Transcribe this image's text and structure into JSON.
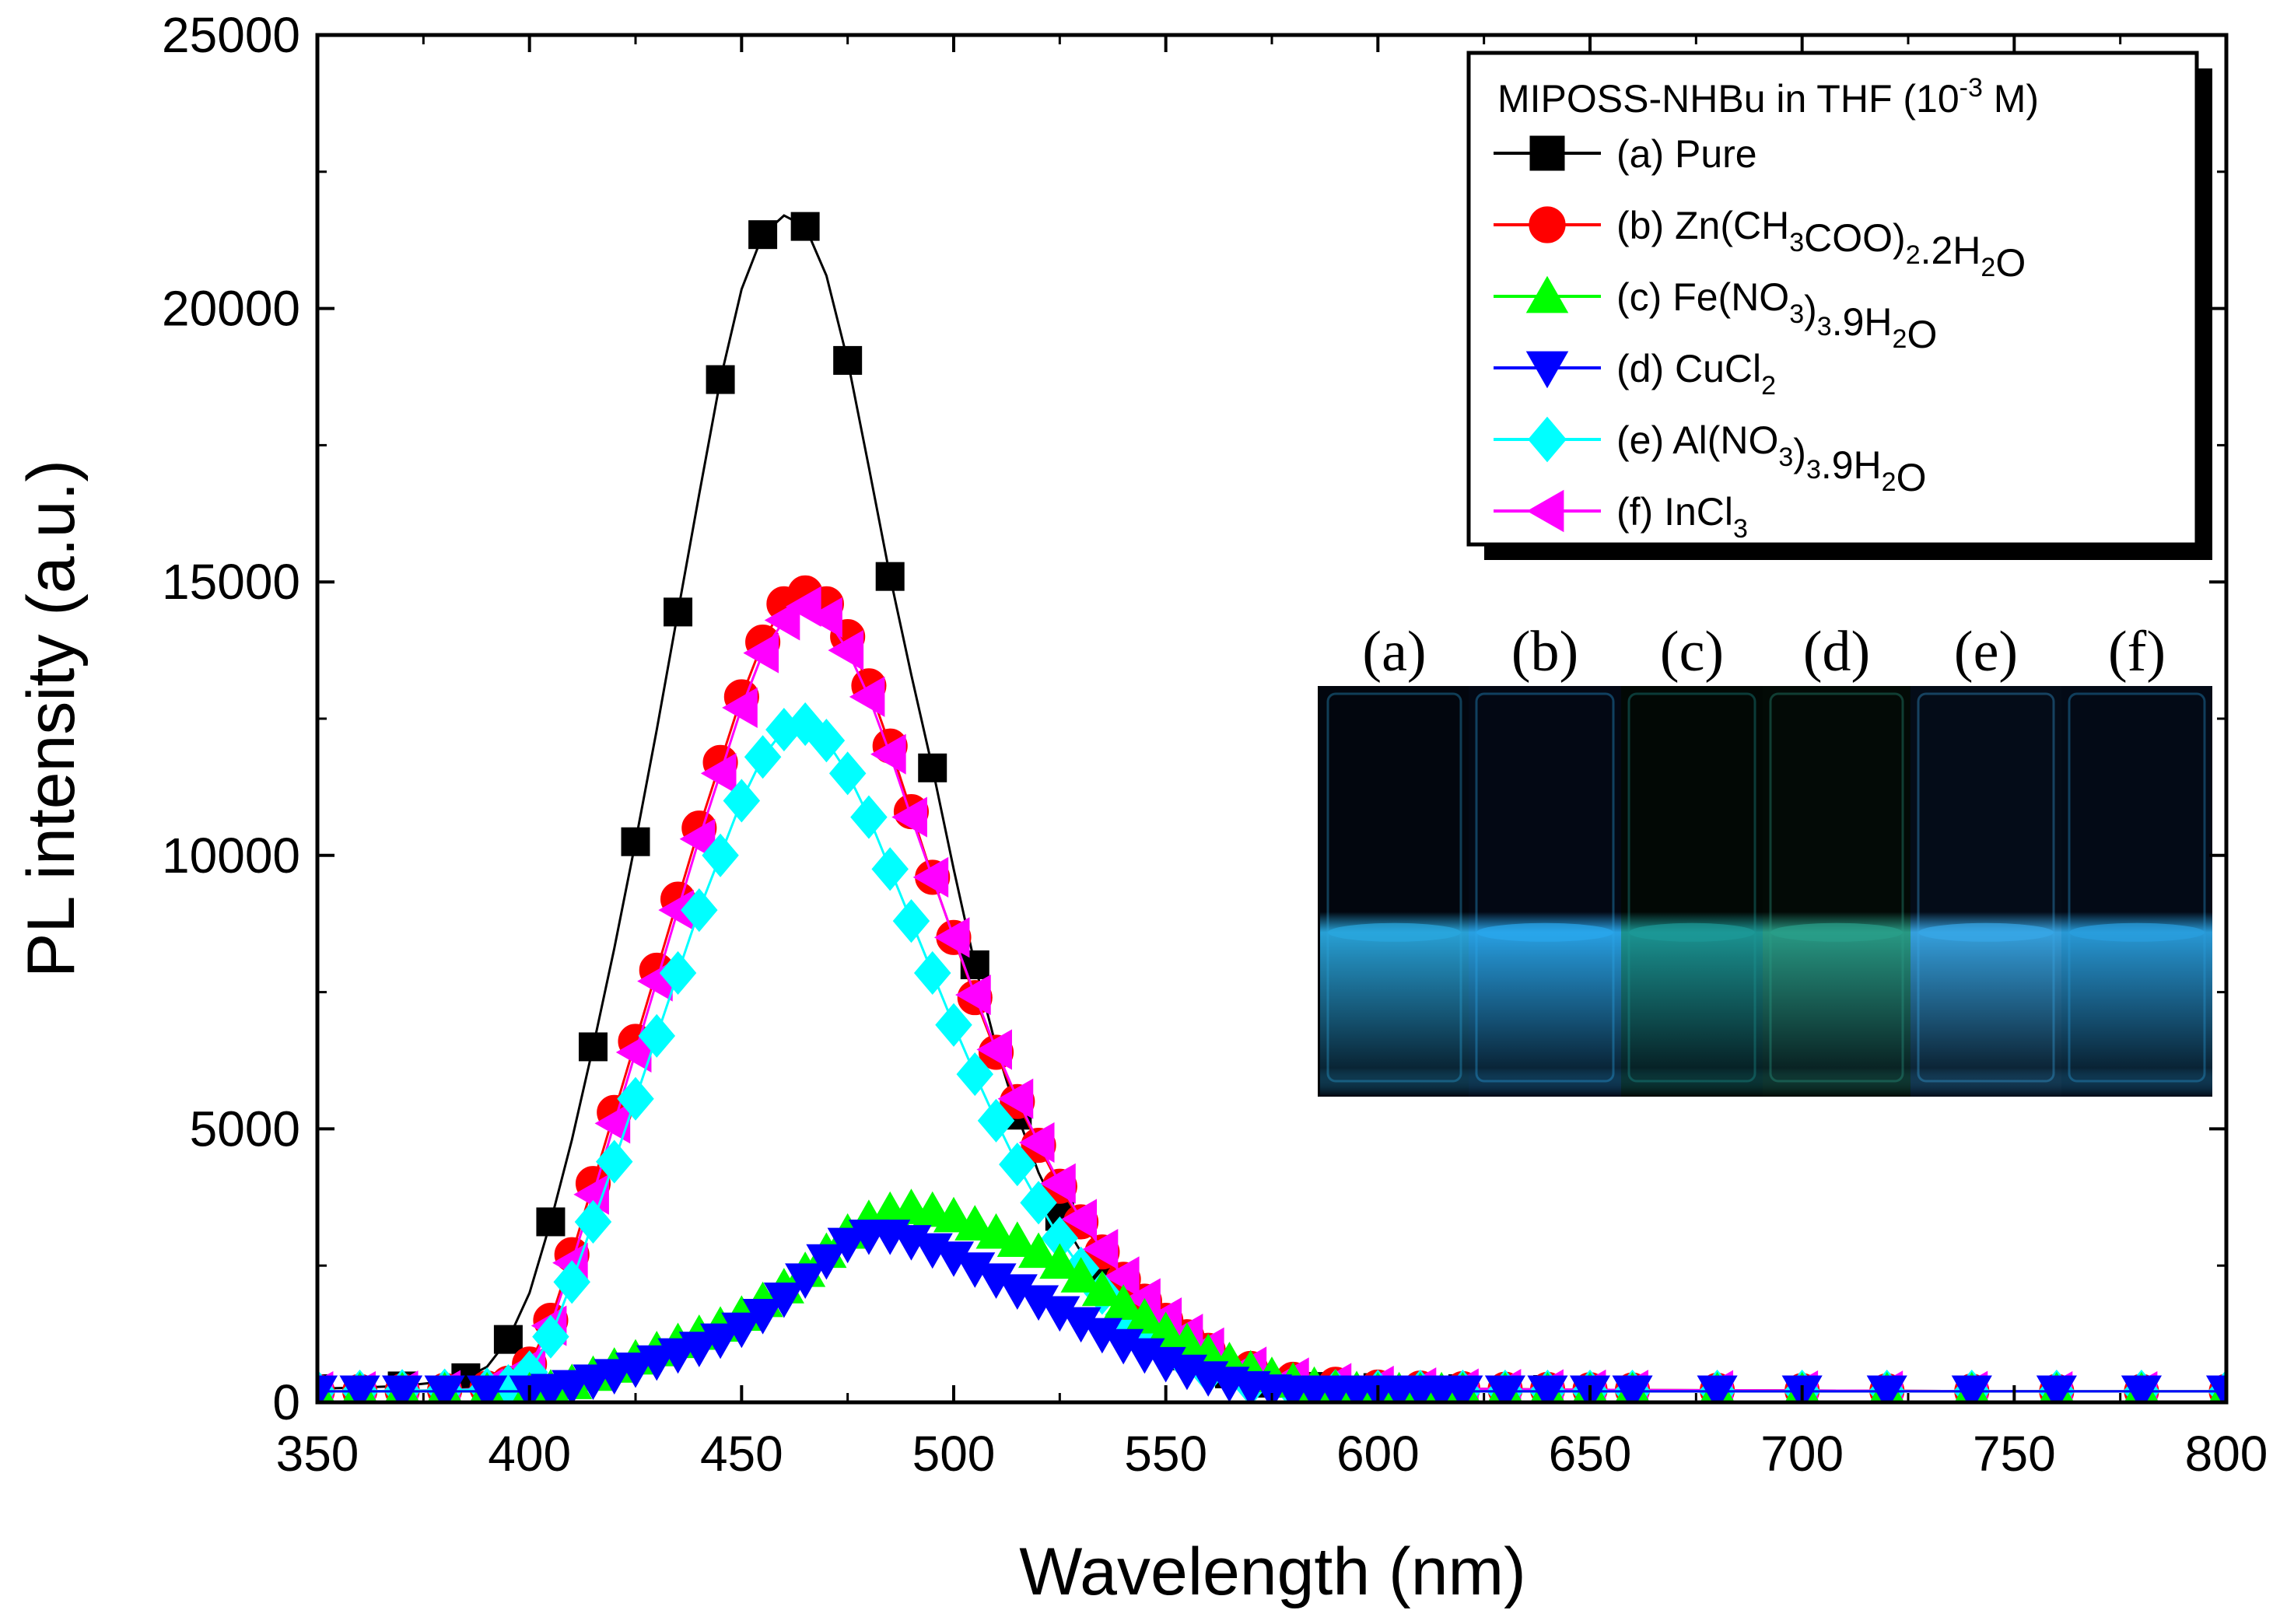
{
  "chart_data": {
    "type": "scatter",
    "xlabel": "Wavelength (nm)",
    "ylabel": "PL intensity (a.u.)",
    "xlim": [
      350,
      800
    ],
    "ylim": [
      0,
      25000
    ],
    "xticks": [
      350,
      400,
      450,
      500,
      550,
      600,
      650,
      700,
      750,
      800
    ],
    "yticks": [
      0,
      5000,
      10000,
      15000,
      20000,
      25000
    ],
    "legend": {
      "title_main": "MIPOSS-NHBu in THF (10",
      "title_sup": "-3",
      "title_end": " M)",
      "position": "top-right"
    },
    "series": [
      {
        "key": "a",
        "symbol": "square",
        "color": "#000000",
        "markerEvery": 2,
        "label_parts": [
          [
            "(a) Pure",
            ""
          ]
        ],
        "x": [
          350,
          360,
          370,
          380,
          385,
          390,
          395,
          400,
          405,
          410,
          415,
          420,
          425,
          430,
          435,
          440,
          445,
          450,
          455,
          460,
          465,
          470,
          475,
          480,
          485,
          490,
          495,
          500,
          505,
          510,
          515,
          520,
          525,
          530,
          535,
          540,
          545,
          550,
          555,
          560,
          565,
          570,
          575,
          580,
          585,
          590,
          600,
          610,
          620,
          630,
          640,
          650,
          660,
          680,
          700,
          720,
          740,
          760,
          780,
          800
        ],
        "y": [
          250,
          270,
          300,
          380,
          450,
          650,
          1150,
          2000,
          3300,
          4800,
          6500,
          8300,
          10250,
          12300,
          14450,
          16600,
          18700,
          20350,
          21350,
          21700,
          21500,
          20600,
          19050,
          17100,
          15100,
          13300,
          11600,
          9750,
          8000,
          6500,
          5250,
          4200,
          3400,
          2750,
          2200,
          1850,
          1400,
          1100,
          850,
          650,
          520,
          420,
          350,
          310,
          290,
          280,
          270,
          260,
          250,
          240,
          235,
          230,
          225,
          220,
          215,
          210,
          205,
          200,
          200,
          200
        ]
      },
      {
        "key": "b",
        "symbol": "circle",
        "color": "#ff0000",
        "markerEvery": 1,
        "label_parts": [
          [
            "(b) Zn(CH",
            ""
          ],
          [
            "3",
            "sub"
          ],
          [
            "COO)",
            ""
          ],
          [
            "2",
            "sub"
          ],
          [
            ".2H",
            ""
          ],
          [
            "2",
            "sub"
          ],
          [
            "O",
            ""
          ]
        ],
        "x": [
          350,
          360,
          370,
          380,
          390,
          395,
          400,
          405,
          410,
          415,
          420,
          425,
          430,
          435,
          440,
          445,
          450,
          455,
          460,
          465,
          470,
          475,
          480,
          485,
          490,
          495,
          500,
          505,
          510,
          515,
          520,
          525,
          530,
          535,
          540,
          545,
          550,
          555,
          560,
          570,
          580,
          590,
          600,
          610,
          620,
          630,
          640,
          650,
          660,
          680,
          700,
          720,
          740,
          760,
          780,
          800
        ],
        "y": [
          200,
          200,
          210,
          220,
          260,
          350,
          700,
          1500,
          2700,
          4000,
          5300,
          6600,
          7900,
          9200,
          10500,
          11700,
          12900,
          13900,
          14600,
          14800,
          14600,
          14000,
          13100,
          12000,
          10800,
          9600,
          8500,
          7400,
          6400,
          5500,
          4700,
          3950,
          3300,
          2750,
          2250,
          1850,
          1500,
          1200,
          950,
          620,
          420,
          330,
          280,
          260,
          250,
          240,
          235,
          230,
          225,
          220,
          215,
          210,
          205,
          200,
          200,
          200
        ]
      },
      {
        "key": "f",
        "symbol": "triangle-left",
        "color": "#ff00ff",
        "markerEvery": 1,
        "label_parts": [
          [
            "(f) InCl",
            ""
          ],
          [
            "3",
            "sub"
          ]
        ],
        "x": [
          350,
          360,
          370,
          380,
          390,
          395,
          400,
          405,
          410,
          415,
          420,
          425,
          430,
          435,
          440,
          445,
          450,
          455,
          460,
          465,
          470,
          475,
          480,
          485,
          490,
          495,
          500,
          505,
          510,
          515,
          520,
          525,
          530,
          535,
          540,
          545,
          550,
          555,
          560,
          570,
          580,
          590,
          600,
          610,
          620,
          630,
          640,
          650,
          660,
          680,
          700,
          720,
          740,
          760,
          780,
          800
        ],
        "y": [
          200,
          200,
          210,
          220,
          250,
          330,
          650,
          1400,
          2550,
          3800,
          5100,
          6400,
          7700,
          9000,
          10300,
          11500,
          12700,
          13700,
          14300,
          14550,
          14350,
          13750,
          12900,
          11850,
          10700,
          9600,
          8500,
          7450,
          6450,
          5550,
          4750,
          4000,
          3350,
          2800,
          2300,
          1900,
          1550,
          1250,
          1000,
          650,
          450,
          350,
          300,
          270,
          250,
          240,
          235,
          230,
          225,
          220,
          215,
          210,
          205,
          200,
          200,
          200
        ]
      },
      {
        "key": "e",
        "symbol": "diamond",
        "color": "#00ffff",
        "markerEvery": 1,
        "label_parts": [
          [
            "(e) Al(NO",
            ""
          ],
          [
            "3",
            "sub"
          ],
          [
            ")",
            ""
          ],
          [
            "3",
            "sub"
          ],
          [
            ".9H",
            ""
          ],
          [
            "2",
            "sub"
          ],
          [
            "O",
            ""
          ]
        ],
        "x": [
          350,
          360,
          370,
          380,
          390,
          395,
          400,
          405,
          410,
          415,
          420,
          425,
          430,
          435,
          440,
          445,
          450,
          455,
          460,
          465,
          470,
          475,
          480,
          485,
          490,
          495,
          500,
          505,
          510,
          515,
          520,
          525,
          530,
          535,
          540,
          545,
          550,
          555,
          560,
          570,
          580,
          590,
          600,
          610,
          620,
          630,
          640,
          650,
          660,
          680,
          700,
          720,
          740,
          760,
          780,
          800
        ],
        "y": [
          200,
          200,
          210,
          220,
          240,
          300,
          550,
          1200,
          2200,
          3300,
          4400,
          5550,
          6700,
          7850,
          9000,
          10000,
          11000,
          11800,
          12300,
          12400,
          12100,
          11500,
          10700,
          9750,
          8800,
          7850,
          6900,
          6000,
          5150,
          4350,
          3650,
          3000,
          2450,
          2000,
          1600,
          1250,
          950,
          720,
          550,
          330,
          240,
          210,
          200,
          200,
          200,
          200,
          200,
          200,
          200,
          200,
          200,
          200,
          200,
          200,
          200,
          200
        ]
      },
      {
        "key": "c",
        "symbol": "triangle-up",
        "color": "#00ff00",
        "markerEvery": 1,
        "label_parts": [
          [
            "(c) Fe(NO",
            ""
          ],
          [
            "3",
            "sub"
          ],
          [
            ")",
            ""
          ],
          [
            "3",
            "sub"
          ],
          [
            ".9H",
            ""
          ],
          [
            "2",
            "sub"
          ],
          [
            "O",
            ""
          ]
        ],
        "x": [
          350,
          360,
          370,
          380,
          390,
          400,
          405,
          410,
          415,
          420,
          425,
          430,
          435,
          440,
          445,
          450,
          455,
          460,
          465,
          470,
          475,
          480,
          485,
          490,
          495,
          500,
          505,
          510,
          515,
          520,
          525,
          530,
          535,
          540,
          545,
          550,
          555,
          560,
          565,
          570,
          575,
          580,
          585,
          590,
          595,
          600,
          605,
          610,
          615,
          620,
          630,
          640,
          650,
          660,
          680,
          700,
          720,
          740,
          760,
          780,
          800
        ],
        "y": [
          200,
          200,
          200,
          200,
          200,
          200,
          250,
          350,
          500,
          650,
          800,
          950,
          1100,
          1250,
          1400,
          1600,
          1850,
          2100,
          2400,
          2750,
          3100,
          3350,
          3500,
          3550,
          3500,
          3400,
          3250,
          3100,
          2950,
          2750,
          2550,
          2300,
          2050,
          1800,
          1550,
          1300,
          1100,
          900,
          750,
          600,
          480,
          380,
          300,
          250,
          220,
          200,
          200,
          200,
          200,
          200,
          200,
          200,
          200,
          200,
          200,
          200,
          200,
          200,
          200,
          200,
          200
        ]
      },
      {
        "key": "d",
        "symbol": "triangle-down",
        "color": "#0000ff",
        "markerEvery": 1,
        "label_parts": [
          [
            "(d) CuCl",
            ""
          ],
          [
            "2",
            "sub"
          ]
        ],
        "x": [
          350,
          360,
          370,
          380,
          390,
          400,
          405,
          410,
          415,
          420,
          425,
          430,
          435,
          440,
          445,
          450,
          455,
          460,
          465,
          470,
          475,
          480,
          485,
          490,
          495,
          500,
          505,
          510,
          515,
          520,
          525,
          530,
          535,
          540,
          545,
          550,
          555,
          560,
          565,
          570,
          575,
          580,
          585,
          590,
          595,
          600,
          605,
          610,
          615,
          620,
          630,
          640,
          650,
          660,
          680,
          700,
          720,
          740,
          760,
          780,
          800
        ],
        "y": [
          200,
          200,
          200,
          200,
          200,
          200,
          230,
          300,
          400,
          500,
          620,
          750,
          880,
          1000,
          1150,
          1350,
          1600,
          1900,
          2250,
          2600,
          2900,
          3050,
          3050,
          2950,
          2800,
          2650,
          2450,
          2250,
          2050,
          1850,
          1650,
          1450,
          1250,
          1050,
          880,
          720,
          580,
          460,
          360,
          280,
          220,
          200,
          200,
          200,
          200,
          200,
          200,
          200,
          200,
          200,
          200,
          200,
          200,
          200,
          200,
          200,
          200,
          200,
          200,
          200,
          200
        ]
      }
    ]
  },
  "inset": {
    "labels": [
      "(a)",
      "(b)",
      "(c)",
      "(d)",
      "(e)",
      "(f)"
    ],
    "vial_glow_colors": [
      "#2aa8e0",
      "#2aa8ee",
      "#1c9a98",
      "#2aa08a",
      "#38a8e8",
      "#2aa0e0"
    ],
    "vial_bg_colors": [
      "#02060e",
      "#030814",
      "#020805",
      "#030a06",
      "#040c18",
      "#030a16"
    ]
  }
}
